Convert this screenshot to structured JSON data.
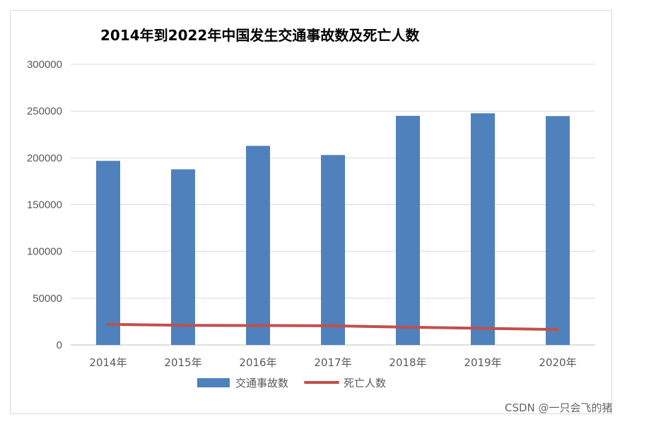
{
  "chart_data": {
    "type": "bar",
    "title": "2014年到2022年中国发生交通事故数及死亡人数",
    "categories": [
      "2014年",
      "2015年",
      "2016年",
      "2017年",
      "2018年",
      "2019年",
      "2020年"
    ],
    "series": [
      {
        "name": "交通事故数",
        "type": "bar",
        "color": "#4f81bd",
        "values": [
          196812,
          187781,
          212846,
          203049,
          244937,
          247646,
          244674
        ]
      },
      {
        "name": "死亡人数",
        "type": "line",
        "color": "#c0504d",
        "values": [
          22000,
          21000,
          20800,
          20500,
          19000,
          17800,
          16500
        ]
      }
    ],
    "yticks": [
      "0",
      "50000",
      "100000",
      "150000",
      "200000",
      "250000",
      "300000"
    ],
    "ylim": [
      0,
      300000
    ],
    "grid": true,
    "legend_position": "bottom"
  },
  "watermark": "CSDN @一只会飞的猪"
}
